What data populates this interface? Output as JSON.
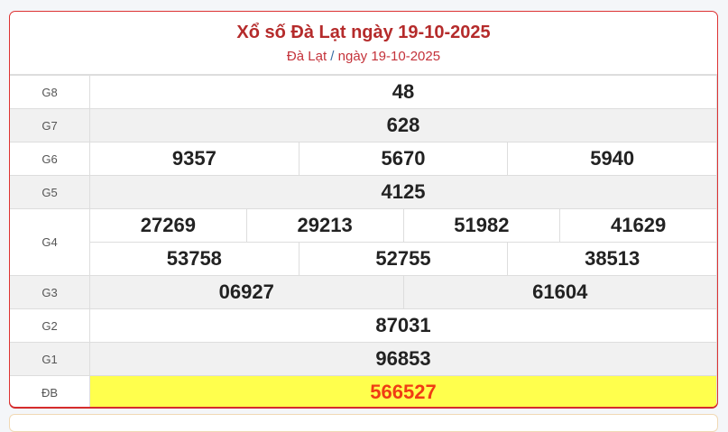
{
  "header": {
    "title": "Xổ số Đà Lạt ngày 19-10-2025",
    "breadcrumb_place": "Đà Lạt",
    "breadcrumb_sep": "/",
    "breadcrumb_date": "ngày 19-10-2025"
  },
  "prizes": [
    {
      "label": "G8",
      "rows": [
        [
          "48"
        ]
      ]
    },
    {
      "label": "G7",
      "rows": [
        [
          "628"
        ]
      ]
    },
    {
      "label": "G6",
      "rows": [
        [
          "9357",
          "5670",
          "5940"
        ]
      ]
    },
    {
      "label": "G5",
      "rows": [
        [
          "4125"
        ]
      ]
    },
    {
      "label": "G4",
      "rows": [
        [
          "27269",
          "29213",
          "51982",
          "41629"
        ],
        [
          "53758",
          "52755",
          "38513"
        ]
      ]
    },
    {
      "label": "G3",
      "rows": [
        [
          "06927",
          "61604"
        ]
      ]
    },
    {
      "label": "G2",
      "rows": [
        [
          "87031"
        ]
      ]
    },
    {
      "label": "G1",
      "rows": [
        [
          "96853"
        ]
      ]
    },
    {
      "label": "ĐB",
      "rows": [
        [
          "566527"
        ]
      ]
    }
  ],
  "colors": {
    "accent": "#b52b2b",
    "special_bg": "#ffff4d",
    "special_text": "#f03c14"
  }
}
